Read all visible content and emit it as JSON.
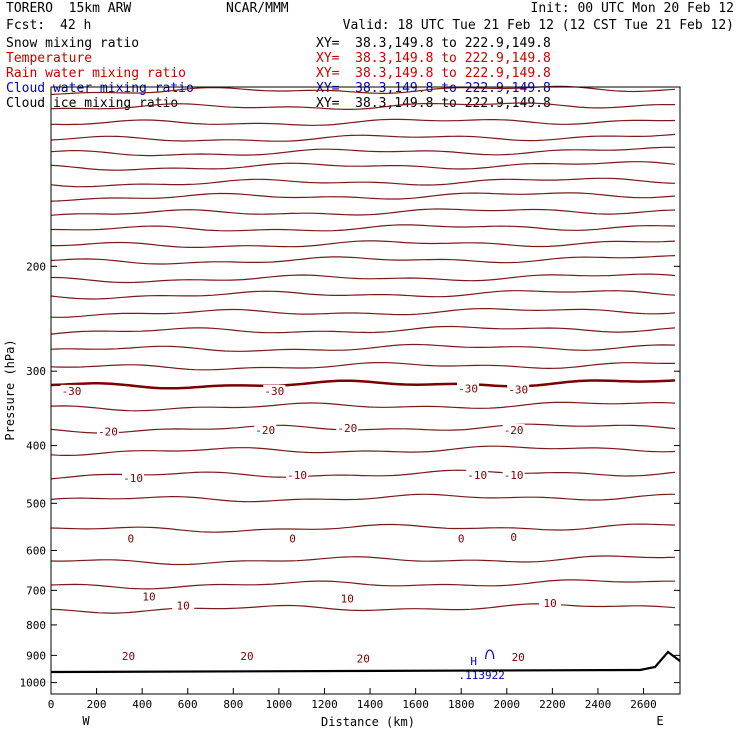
{
  "header": {
    "model": "TORERO  15km ARW",
    "institution": "NCAR/MMM",
    "init": "Init: 00 UTC Mon 20 Feb 12",
    "fcst_label": "Fcst:",
    "fcst_value": "42 h",
    "valid": "Valid: 18 UTC Tue 21 Feb 12 (12 CST Tue 21 Feb 12)"
  },
  "fields": [
    {
      "label": "Snow mixing ratio",
      "xy": "XY=  38.3,149.8 to 222.9,149.8",
      "color": "#000000"
    },
    {
      "label": "Temperature",
      "xy": "XY=  38.3,149.8 to 222.9,149.8",
      "color": "#cc0000"
    },
    {
      "label": "Rain water mixing ratio",
      "xy": "XY=  38.3,149.8 to 222.9,149.8",
      "color": "#cc0000"
    },
    {
      "label": "Cloud water mixing ratio",
      "xy": "XY=  38.3,149.8 to 222.9,149.8",
      "color": "#0000cc"
    },
    {
      "label": "Cloud ice mixing ratio",
      "xy": "XY=  38.3,149.8 to 222.9,149.8",
      "color": "#000000"
    }
  ],
  "colors": {
    "isotherm": "#7a1a1a",
    "zero_isotherm": "#7a0000",
    "terrain": "#000000",
    "cloud_water": "#0000cc"
  },
  "chart_data": {
    "type": "line",
    "xlabel": "Distance (km)",
    "ylabel": "Pressure (hPa)",
    "xlim": [
      0,
      2760
    ],
    "ylim": [
      1045,
      100
    ],
    "yscale": "log",
    "x_ticks": [
      0,
      200,
      400,
      600,
      800,
      1000,
      1200,
      1400,
      1600,
      1800,
      2000,
      2200,
      2400,
      2600
    ],
    "y_ticks": [
      200,
      300,
      400,
      500,
      600,
      700,
      800,
      900,
      1000
    ],
    "x_end_labels": {
      "left": "W",
      "right": "E"
    },
    "isotherm_interval": 5,
    "contour_labels": [
      {
        "text": "-30",
        "x": 90,
        "p": 325
      },
      {
        "text": "-30",
        "x": 980,
        "p": 325
      },
      {
        "text": "-30",
        "x": 1830,
        "p": 322
      },
      {
        "text": "-30",
        "x": 2050,
        "p": 323
      },
      {
        "text": "-20",
        "x": 250,
        "p": 380
      },
      {
        "text": "-20",
        "x": 940,
        "p": 378
      },
      {
        "text": "-20",
        "x": 1300,
        "p": 375
      },
      {
        "text": "-20",
        "x": 2030,
        "p": 378
      },
      {
        "text": "-10",
        "x": 360,
        "p": 455
      },
      {
        "text": "-10",
        "x": 1080,
        "p": 450
      },
      {
        "text": "-10",
        "x": 1870,
        "p": 450
      },
      {
        "text": "-10",
        "x": 2030,
        "p": 450
      },
      {
        "text": "0",
        "x": 350,
        "p": 575
      },
      {
        "text": "0",
        "x": 1060,
        "p": 575
      },
      {
        "text": "0",
        "x": 1800,
        "p": 575
      },
      {
        "text": "0",
        "x": 2030,
        "p": 572
      },
      {
        "text": "10",
        "x": 430,
        "p": 720
      },
      {
        "text": "10",
        "x": 580,
        "p": 745
      },
      {
        "text": "10",
        "x": 1300,
        "p": 725
      },
      {
        "text": "10",
        "x": 2190,
        "p": 738
      },
      {
        "text": "20",
        "x": 340,
        "p": 905
      },
      {
        "text": "20",
        "x": 860,
        "p": 905
      },
      {
        "text": "20",
        "x": 1370,
        "p": 915
      },
      {
        "text": "20",
        "x": 2050,
        "p": 910
      }
    ],
    "cloud_water_max": {
      "text": "H",
      "value": ".113922",
      "x": 1890,
      "p": 920
    }
  }
}
